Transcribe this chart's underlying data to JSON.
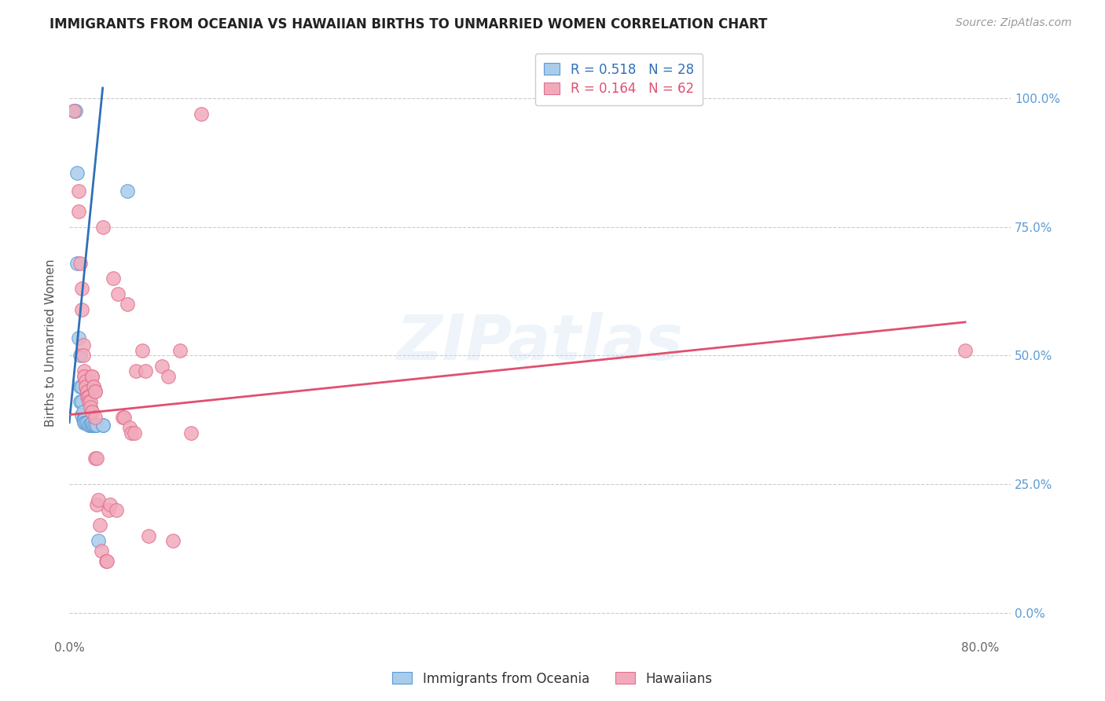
{
  "title": "IMMIGRANTS FROM OCEANIA VS HAWAIIAN BIRTHS TO UNMARRIED WOMEN CORRELATION CHART",
  "source": "Source: ZipAtlas.com",
  "ylabel": "Births to Unmarried Women",
  "legend_blue_r": "R = 0.518",
  "legend_blue_n": "N = 28",
  "legend_pink_r": "R = 0.164",
  "legend_pink_n": "N = 62",
  "watermark": "ZIPatlas",
  "blue_scatter": [
    [
      0.003,
      0.975
    ],
    [
      0.004,
      0.975
    ],
    [
      0.005,
      0.855
    ],
    [
      0.005,
      0.68
    ],
    [
      0.006,
      0.535
    ],
    [
      0.007,
      0.5
    ],
    [
      0.007,
      0.44
    ],
    [
      0.007,
      0.41
    ],
    [
      0.008,
      0.44
    ],
    [
      0.008,
      0.41
    ],
    [
      0.008,
      0.385
    ],
    [
      0.009,
      0.39
    ],
    [
      0.009,
      0.375
    ],
    [
      0.01,
      0.375
    ],
    [
      0.01,
      0.37
    ],
    [
      0.011,
      0.37
    ],
    [
      0.012,
      0.37
    ],
    [
      0.013,
      0.365
    ],
    [
      0.014,
      0.365
    ],
    [
      0.015,
      0.365
    ],
    [
      0.015,
      0.37
    ],
    [
      0.016,
      0.365
    ],
    [
      0.017,
      0.365
    ],
    [
      0.018,
      0.365
    ],
    [
      0.019,
      0.14
    ],
    [
      0.022,
      0.365
    ],
    [
      0.022,
      0.365
    ],
    [
      0.038,
      0.82
    ]
  ],
  "pink_scatter": [
    [
      0.003,
      0.975
    ],
    [
      0.006,
      0.82
    ],
    [
      0.006,
      0.78
    ],
    [
      0.007,
      0.68
    ],
    [
      0.008,
      0.63
    ],
    [
      0.008,
      0.59
    ],
    [
      0.009,
      0.52
    ],
    [
      0.009,
      0.5
    ],
    [
      0.01,
      0.47
    ],
    [
      0.01,
      0.46
    ],
    [
      0.01,
      0.46
    ],
    [
      0.011,
      0.45
    ],
    [
      0.011,
      0.44
    ],
    [
      0.011,
      0.44
    ],
    [
      0.012,
      0.43
    ],
    [
      0.012,
      0.43
    ],
    [
      0.012,
      0.42
    ],
    [
      0.013,
      0.42
    ],
    [
      0.013,
      0.42
    ],
    [
      0.013,
      0.41
    ],
    [
      0.014,
      0.41
    ],
    [
      0.014,
      0.4
    ],
    [
      0.015,
      0.39
    ],
    [
      0.015,
      0.39
    ],
    [
      0.015,
      0.46
    ],
    [
      0.015,
      0.46
    ],
    [
      0.016,
      0.44
    ],
    [
      0.016,
      0.44
    ],
    [
      0.017,
      0.43
    ],
    [
      0.017,
      0.43
    ],
    [
      0.017,
      0.38
    ],
    [
      0.017,
      0.3
    ],
    [
      0.018,
      0.3
    ],
    [
      0.018,
      0.21
    ],
    [
      0.019,
      0.22
    ],
    [
      0.02,
      0.17
    ],
    [
      0.021,
      0.12
    ],
    [
      0.022,
      0.75
    ],
    [
      0.024,
      0.1
    ],
    [
      0.025,
      0.1
    ],
    [
      0.026,
      0.2
    ],
    [
      0.027,
      0.21
    ],
    [
      0.029,
      0.65
    ],
    [
      0.031,
      0.2
    ],
    [
      0.032,
      0.62
    ],
    [
      0.035,
      0.38
    ],
    [
      0.036,
      0.38
    ],
    [
      0.038,
      0.6
    ],
    [
      0.04,
      0.36
    ],
    [
      0.041,
      0.35
    ],
    [
      0.043,
      0.35
    ],
    [
      0.044,
      0.47
    ],
    [
      0.048,
      0.51
    ],
    [
      0.05,
      0.47
    ],
    [
      0.052,
      0.15
    ],
    [
      0.061,
      0.48
    ],
    [
      0.065,
      0.46
    ],
    [
      0.068,
      0.14
    ],
    [
      0.073,
      0.51
    ],
    [
      0.08,
      0.35
    ],
    [
      0.087,
      0.97
    ],
    [
      0.59,
      0.51
    ]
  ],
  "blue_line_x": [
    0.0,
    0.022
  ],
  "blue_line_y": [
    0.37,
    1.02
  ],
  "pink_line_x": [
    0.0,
    0.59
  ],
  "pink_line_y": [
    0.385,
    0.565
  ],
  "blue_dot_color": "#A8CCEA",
  "pink_dot_color": "#F2AABB",
  "blue_edge_color": "#5B9BD5",
  "pink_edge_color": "#E07090",
  "blue_line_color": "#3070B8",
  "pink_line_color": "#E05070",
  "background_color": "#FFFFFF",
  "grid_color": "#CCCCCC",
  "xlim": [
    0.0,
    0.62
  ],
  "ylim": [
    -0.05,
    1.1
  ],
  "yticks": [
    0.0,
    0.25,
    0.5,
    0.75,
    1.0
  ],
  "ytick_labels_right": [
    "0.0%",
    "25.0%",
    "50.0%",
    "75.0%",
    "100.0%"
  ],
  "figsize": [
    14.06,
    8.92
  ],
  "dpi": 100
}
